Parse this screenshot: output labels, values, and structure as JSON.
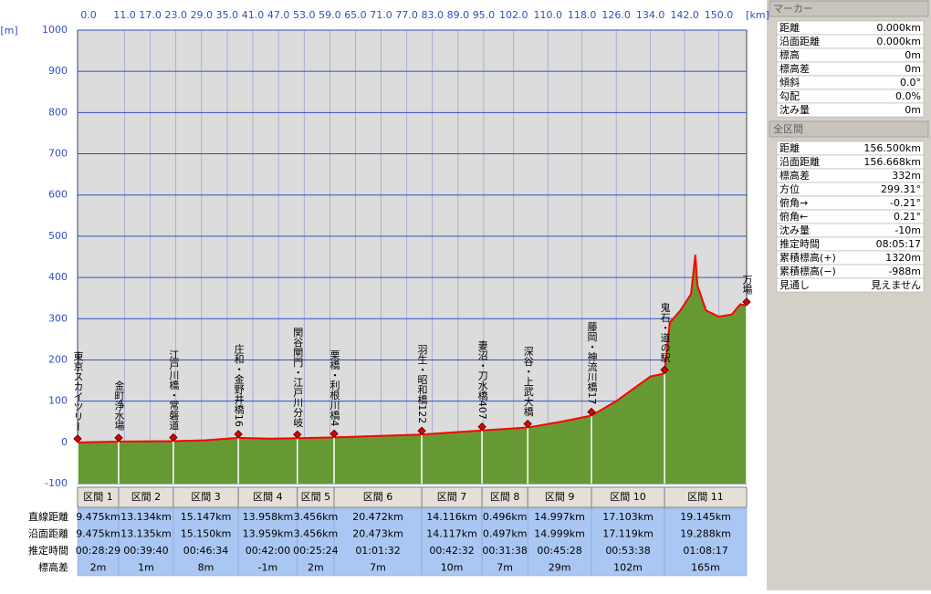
{
  "chart_data": {
    "type": "area",
    "x_unit": "[km]",
    "y_unit": "[m]",
    "xlim": [
      0,
      156.5
    ],
    "ylim": [
      -100,
      1000
    ],
    "xticks": [
      {
        "value": 0,
        "label": "0.0"
      },
      {
        "value": 11,
        "label": "11.0"
      },
      {
        "value": 17,
        "label": "17.0"
      },
      {
        "value": 23,
        "label": "23.0"
      },
      {
        "value": 29,
        "label": "29.0"
      },
      {
        "value": 35,
        "label": "35.0"
      },
      {
        "value": 41,
        "label": "41.0"
      },
      {
        "value": 47,
        "label": "47.0"
      },
      {
        "value": 53,
        "label": "53.0"
      },
      {
        "value": 59,
        "label": "59.0"
      },
      {
        "value": 65,
        "label": "65.0"
      },
      {
        "value": 71,
        "label": "71.0"
      },
      {
        "value": 77,
        "label": "77.0"
      },
      {
        "value": 83,
        "label": "83.0"
      },
      {
        "value": 89,
        "label": "89.0"
      },
      {
        "value": 95,
        "label": "95.0"
      },
      {
        "value": 102,
        "label": "102.0"
      },
      {
        "value": 110,
        "label": "110.0"
      },
      {
        "value": 118,
        "label": "118.0"
      },
      {
        "value": 126,
        "label": "126.0"
      },
      {
        "value": 134,
        "label": "134.0"
      },
      {
        "value": 142,
        "label": "142.0"
      },
      {
        "value": 150,
        "label": "150.0"
      }
    ],
    "yticks": [
      -100,
      0,
      100,
      200,
      300,
      400,
      500,
      600,
      700,
      800,
      900,
      1000
    ],
    "grid": true,
    "color": "#ff0000",
    "fill_color": "#669933",
    "x": [
      0,
      9.6,
      22.4,
      30,
      37.6,
      45,
      51.4,
      60,
      80.5,
      94.6,
      105.3,
      113,
      120.2,
      126,
      130,
      134,
      137.3,
      138.5,
      141,
      143.5,
      144.5,
      145,
      147,
      150,
      153,
      155,
      156.5
    ],
    "values": [
      0,
      2,
      3,
      5,
      11,
      9,
      10,
      12,
      19,
      29,
      36,
      50,
      65,
      100,
      130,
      160,
      167,
      290,
      320,
      360,
      455,
      380,
      320,
      305,
      310,
      335,
      332
    ],
    "markers": [
      {
        "label": "東京スカイツリー",
        "km": 0,
        "elevation": 0
      },
      {
        "label": "金町浄水場",
        "km": 9.6,
        "elevation": 2
      },
      {
        "label": "江戸川橋・常磐道",
        "km": 22.4,
        "elevation": 3
      },
      {
        "label": "庄和・金野井橋16",
        "km": 37.6,
        "elevation": 11
      },
      {
        "label": "関谷閘門・江戸川分岐",
        "km": 51.4,
        "elevation": 10
      },
      {
        "label": "栗橋・利根川橋4",
        "km": 60,
        "elevation": 12
      },
      {
        "label": "羽生・昭和橋122",
        "km": 80.5,
        "elevation": 19
      },
      {
        "label": "妻沼・刀水橋407",
        "km": 94.6,
        "elevation": 29
      },
      {
        "label": "深谷・上武大橋",
        "km": 105.3,
        "elevation": 36
      },
      {
        "label": "藤岡・神流川橋17",
        "km": 120.2,
        "elevation": 65
      },
      {
        "label": "鬼石・道の駅",
        "km": 137.3,
        "elevation": 167
      },
      {
        "label": "万場",
        "km": 156.5,
        "elevation": 332
      }
    ]
  },
  "section_table": {
    "headers": [
      "区間 1",
      "区間 2",
      "区間 3",
      "区間 4",
      "区間 5",
      "区間 6",
      "区間 7",
      "区間 8",
      "区間 9",
      "区間 10",
      "区間 11"
    ],
    "row_labels": [
      "直線距離",
      "沿面距離",
      "推定時間",
      "標高差"
    ],
    "rows": [
      [
        "9.475km",
        "13.134km",
        "15.147km",
        "13.958km",
        "3.456km",
        "20.472km",
        "14.116km",
        "0.496km",
        "14.997km",
        "17.103km",
        "19.145km"
      ],
      [
        "9.475km",
        "13.135km",
        "15.150km",
        "13.959km",
        "3.456km",
        "20.473km",
        "14.117km",
        "0.497km",
        "14.999km",
        "17.119km",
        "19.288km"
      ],
      [
        "00:28:29",
        "00:39:40",
        "00:46:34",
        "00:42:00",
        "00:25:24",
        "01:01:32",
        "00:42:32",
        "00:31:38",
        "00:45:28",
        "00:53:38",
        "01:08:17"
      ],
      [
        "2m",
        "1m",
        "8m",
        "-1m",
        "2m",
        "7m",
        "10m",
        "7m",
        "29m",
        "102m",
        "165m"
      ]
    ]
  },
  "marker_panel": {
    "title": "マーカー",
    "rows": [
      [
        "距離",
        "0.000km"
      ],
      [
        "沿面距離",
        "0.000km"
      ],
      [
        "標高",
        "0m"
      ],
      [
        "標高差",
        "0m"
      ],
      [
        "傾斜",
        "0.0°"
      ],
      [
        "勾配",
        "0.0%"
      ],
      [
        "沈み量",
        "0m"
      ]
    ]
  },
  "total_panel": {
    "title": "全区間",
    "rows": [
      [
        "距離",
        "156.500km"
      ],
      [
        "沿面距離",
        "156.668km"
      ],
      [
        "標高差",
        "332m"
      ],
      [
        "方位",
        "299.31°"
      ],
      [
        "俯角→",
        "-0.21°"
      ],
      [
        "俯角←",
        "0.21°"
      ],
      [
        "沈み量",
        "-10m"
      ],
      [
        "推定時間",
        "08:05:17"
      ],
      [
        "累積標高(+)",
        "1320m"
      ],
      [
        "累積標高(−)",
        "-988m"
      ],
      [
        "見通し",
        "見えません"
      ]
    ]
  }
}
